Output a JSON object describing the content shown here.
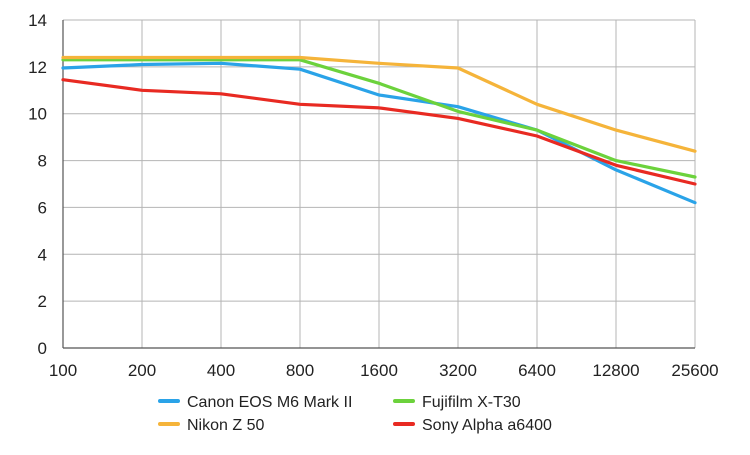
{
  "chart_data": {
    "type": "line",
    "title": "",
    "xlabel": "",
    "ylabel": "",
    "categories": [
      "100",
      "200",
      "400",
      "800",
      "1600",
      "3200",
      "6400",
      "12800",
      "25600"
    ],
    "ylim": [
      0,
      14
    ],
    "yticks": [
      0,
      2,
      4,
      6,
      8,
      10,
      12,
      14
    ],
    "grid": true,
    "legend_position": "bottom",
    "series": [
      {
        "name": "Canon EOS M6 Mark II",
        "color": "#2aa3e8",
        "values": [
          11.95,
          12.1,
          12.15,
          11.9,
          10.8,
          10.3,
          9.3,
          7.6,
          6.2
        ]
      },
      {
        "name": "Fujifilm X-T30",
        "color": "#6cd23c",
        "values": [
          12.3,
          12.3,
          12.3,
          12.3,
          11.3,
          10.1,
          9.3,
          8.0,
          7.3
        ]
      },
      {
        "name": "Nikon Z 50",
        "color": "#f5b43a",
        "values": [
          12.4,
          12.4,
          12.4,
          12.4,
          12.15,
          11.95,
          10.4,
          9.3,
          8.4
        ]
      },
      {
        "name": "Sony Alpha a6400",
        "color": "#e82a22",
        "values": [
          11.45,
          11.0,
          10.85,
          10.4,
          10.25,
          9.8,
          9.05,
          7.8,
          7.0
        ]
      }
    ]
  },
  "colors": {
    "grid": "#b4b4b4",
    "axis": "#555555",
    "background": "#ffffff"
  }
}
